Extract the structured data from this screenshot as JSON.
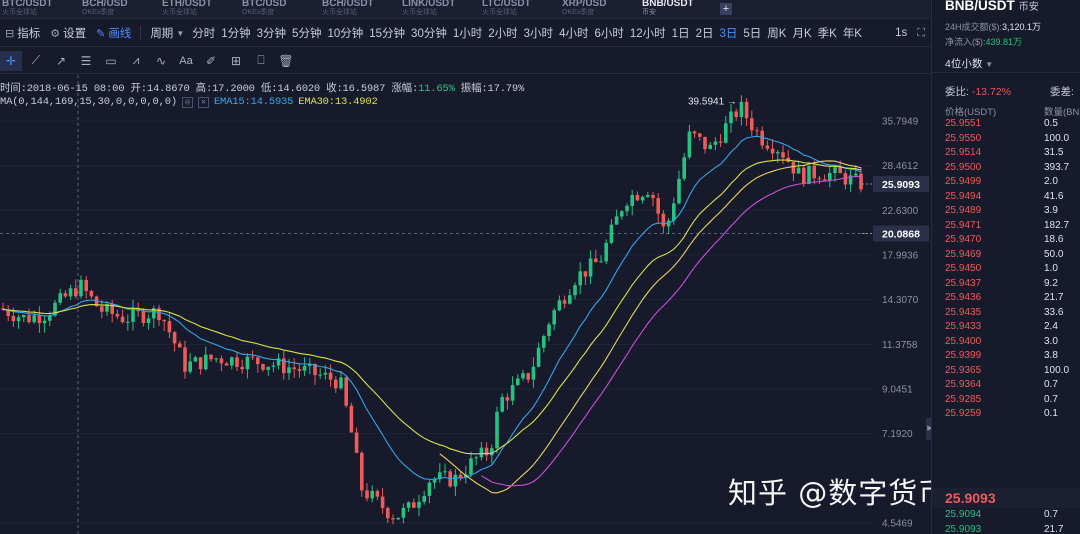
{
  "market_tabs": [
    {
      "pair": "BTC/USDT",
      "exchange": "火币全球站"
    },
    {
      "pair": "BCH/USD",
      "exchange": "OKEx季度"
    },
    {
      "pair": "ETH/USDT",
      "exchange": "火币全球站"
    },
    {
      "pair": "BTC/USD",
      "exchange": "OKEx季度"
    },
    {
      "pair": "BCH/USDT",
      "exchange": "火币全球站"
    },
    {
      "pair": "LINK/USDT",
      "exchange": "火币全球站"
    },
    {
      "pair": "LTC/USDT",
      "exchange": "火币全球站"
    },
    {
      "pair": "XRP/USD",
      "exchange": "OKEx季度"
    },
    {
      "pair": "BNB/USDT",
      "exchange": "币安"
    }
  ],
  "add_tab": "+",
  "toolbar": {
    "indicators": "指标",
    "settings": "设置",
    "drawing": "画线",
    "period": "周期",
    "periods": [
      "分时",
      "1分钟",
      "3分钟",
      "5分钟",
      "10分钟",
      "15分钟",
      "30分钟",
      "1小时",
      "2小时",
      "3小时",
      "4小时",
      "6小时",
      "12小时",
      "1日",
      "2日",
      "3日",
      "5日",
      "周K",
      "月K",
      "季K",
      "年K"
    ],
    "active_period": "3日",
    "scale_label": "1s"
  },
  "drawing_tools": [
    "crosshair-tool",
    "trendline-tool",
    "ray-tool",
    "fibonacci-tool",
    "rectangle-tool",
    "channel-tool",
    "wave-tool",
    "text-tool",
    "brush-tool",
    "measure-tool",
    "lock-tool",
    "delete-tool"
  ],
  "ohlc": {
    "time_label": "时间:",
    "time": "2018-06-15 08:00",
    "open_label": "开:",
    "open": "14.8670",
    "high_label": "高:",
    "high": "17.2000",
    "low_label": "低:",
    "low": "14.6020",
    "close_label": "收:",
    "close": "16.5987",
    "change_label": "涨幅:",
    "change": "11.65%",
    "amplitude_label": "振幅:",
    "amplitude": "17.79%"
  },
  "indicators": {
    "ma": "MA(0,144,169,15,30,0,0,0,0,0)",
    "ema15": "EMA15:14.5935",
    "ema30": "EMA30:13.4902"
  },
  "chart_data": {
    "type": "candlestick",
    "y_ticks": [
      35.7949,
      28.4612,
      22.63,
      17.9936,
      14.307,
      11.3758,
      9.0451,
      7.192,
      4.5469
    ],
    "current_price": "25.9093",
    "crosshair_price": "20.0868",
    "high_annotation": "39.5941",
    "colors": {
      "up": "#26c281",
      "down": "#ef5a5a",
      "ema15": "#35a6e8",
      "ema30": "#d7e04a",
      "ma144": "#e6d35c",
      "ma169": "#c84fd8"
    }
  },
  "watermark": "知乎 @数字货币币少爷",
  "right_panel": {
    "pair": "BNB/USDT",
    "exchange": "币安",
    "volume_label": "24H成交额($):",
    "volume": "3,120.1万",
    "inflow_label": "净流入($):",
    "inflow": "439.81万",
    "precision": "4位小数",
    "weibi_label": "委比:",
    "weibi": "-13.72%",
    "weicha_label": "委差:",
    "col_price": "价格(USDT)",
    "col_qty": "数量(BNB)",
    "asks": [
      {
        "p": "25.9551",
        "q": "0.5"
      },
      {
        "p": "25.9550",
        "q": "100.0"
      },
      {
        "p": "25.9514",
        "q": "31.5"
      },
      {
        "p": "25.9500",
        "q": "393.7"
      },
      {
        "p": "25.9499",
        "q": "2.0"
      },
      {
        "p": "25.9494",
        "q": "41.6"
      },
      {
        "p": "25.9489",
        "q": "3.9"
      },
      {
        "p": "25.9471",
        "q": "182.7"
      },
      {
        "p": "25.9470",
        "q": "18.6"
      },
      {
        "p": "25.9469",
        "q": "50.0"
      },
      {
        "p": "25.9450",
        "q": "1.0"
      },
      {
        "p": "25.9437",
        "q": "9.2"
      },
      {
        "p": "25.9436",
        "q": "21.7"
      },
      {
        "p": "25.9435",
        "q": "33.6"
      },
      {
        "p": "25.9433",
        "q": "2.4"
      },
      {
        "p": "25.9400",
        "q": "3.0"
      },
      {
        "p": "25.9399",
        "q": "3.8"
      },
      {
        "p": "25.9365",
        "q": "100.0"
      },
      {
        "p": "25.9364",
        "q": "0.7"
      },
      {
        "p": "25.9285",
        "q": "0.7"
      },
      {
        "p": "25.9259",
        "q": "0.1"
      }
    ],
    "last_price": "25.9093",
    "bids": [
      {
        "p": "25.9094",
        "q": "0.7"
      },
      {
        "p": "25.9093",
        "q": "21.7"
      }
    ]
  }
}
